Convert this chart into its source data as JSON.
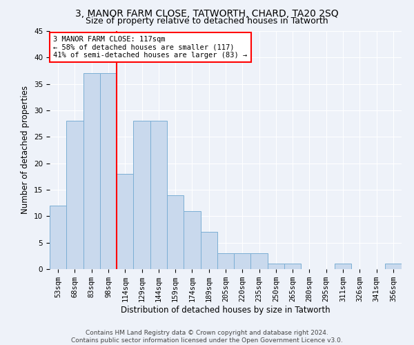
{
  "title": "3, MANOR FARM CLOSE, TATWORTH, CHARD, TA20 2SQ",
  "subtitle": "Size of property relative to detached houses in Tatworth",
  "xlabel": "Distribution of detached houses by size in Tatworth",
  "ylabel": "Number of detached properties",
  "categories": [
    "53sqm",
    "68sqm",
    "83sqm",
    "98sqm",
    "114sqm",
    "129sqm",
    "144sqm",
    "159sqm",
    "174sqm",
    "189sqm",
    "205sqm",
    "220sqm",
    "235sqm",
    "250sqm",
    "265sqm",
    "280sqm",
    "295sqm",
    "311sqm",
    "326sqm",
    "341sqm",
    "356sqm"
  ],
  "values": [
    12,
    28,
    37,
    37,
    18,
    28,
    28,
    14,
    11,
    7,
    3,
    3,
    3,
    1,
    1,
    0,
    0,
    1,
    0,
    0,
    1
  ],
  "bar_color": "#c9d9ed",
  "bar_edge_color": "#7baed4",
  "annotation_line": "3 MANOR FARM CLOSE: 117sqm",
  "annotation_line2": "← 58% of detached houses are smaller (117)",
  "annotation_line3": "41% of semi-detached houses are larger (83) →",
  "annotation_box_color": "white",
  "annotation_box_edge_color": "red",
  "ylim": [
    0,
    45
  ],
  "yticks": [
    0,
    5,
    10,
    15,
    20,
    25,
    30,
    35,
    40,
    45
  ],
  "footer1": "Contains HM Land Registry data © Crown copyright and database right 2024.",
  "footer2": "Contains public sector information licensed under the Open Government Licence v3.0.",
  "background_color": "#eef2f9",
  "grid_color": "white",
  "title_fontsize": 10,
  "subtitle_fontsize": 9,
  "axis_label_fontsize": 8.5,
  "tick_fontsize": 7.5,
  "annotation_fontsize": 7.5,
  "footer_fontsize": 6.5
}
